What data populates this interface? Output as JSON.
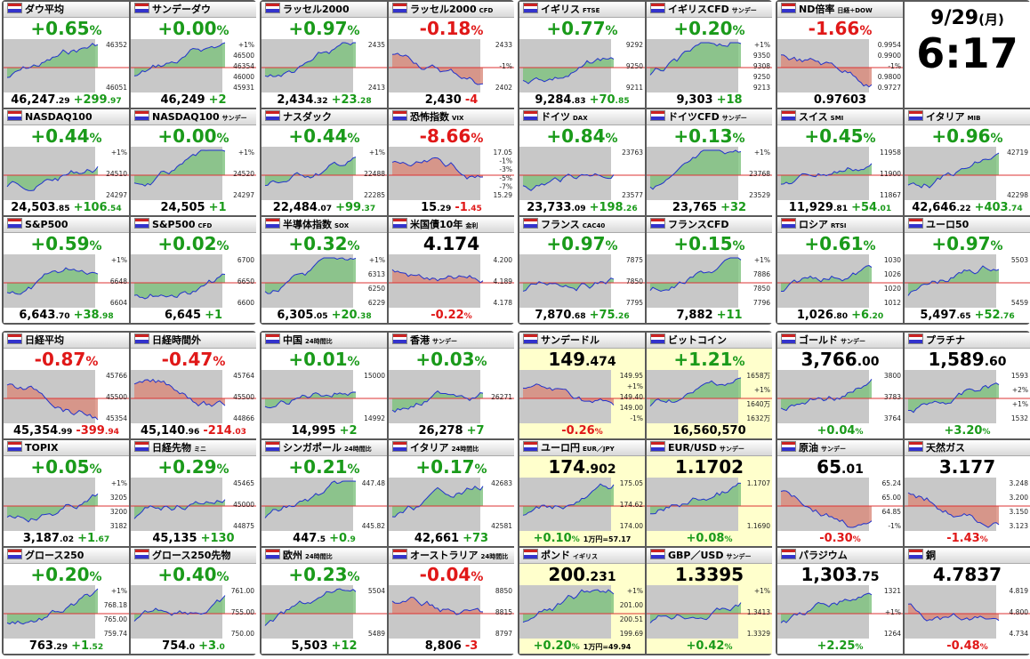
{
  "panels": [
    {
      "tiles": [
        {
          "name": "ダウ平均",
          "head": [
            "+0.65",
            "%"
          ],
          "foot": [
            [
              "46,247",
              ".29"
            ],
            [
              "+299",
              ".97"
            ]
          ],
          "labels": [
            "46352",
            "46051"
          ]
        },
        {
          "name": "サンデーダウ",
          "head": [
            "+0.00",
            "%"
          ],
          "foot": [
            [
              "46,249"
            ],
            [
              "+2"
            ]
          ],
          "labels": [
            "+1%",
            "46500",
            "46354",
            "46000",
            "45931"
          ]
        },
        {
          "name": "NASDAQ100",
          "head": [
            "+0.44",
            "%"
          ],
          "foot": [
            [
              "24,503",
              ".85"
            ],
            [
              "+106",
              ".54"
            ]
          ],
          "labels": [
            "+1%",
            "24510",
            "24297"
          ]
        },
        {
          "name": "NASDAQ100",
          "tag": "サンデー",
          "head": [
            "+0.00",
            "%"
          ],
          "foot": [
            [
              "24,505"
            ],
            [
              "+1"
            ]
          ],
          "labels": [
            "+1%",
            "24520",
            "24297"
          ]
        },
        {
          "name": "S&P500",
          "head": [
            "+0.59",
            "%"
          ],
          "foot": [
            [
              "6,643",
              ".70"
            ],
            [
              "+38",
              ".98"
            ]
          ],
          "labels": [
            "+1%",
            "6648",
            "6604"
          ]
        },
        {
          "name": "S&P500",
          "tag": "CFD",
          "head": [
            "+0.02",
            "%"
          ],
          "foot": [
            [
              "6,645"
            ],
            [
              "+1"
            ]
          ],
          "labels": [
            "6700",
            "6650",
            "6600"
          ]
        }
      ]
    },
    {
      "tiles": [
        {
          "name": "ラッセル2000",
          "head": [
            "+0.97",
            "%"
          ],
          "foot": [
            [
              "2,434",
              ".32"
            ],
            [
              "+23",
              ".28"
            ]
          ],
          "labels": [
            "2435",
            "2413"
          ]
        },
        {
          "name": "ラッセル2000",
          "tag": "CFD",
          "head": [
            "-0.18",
            "%"
          ],
          "foot": [
            [
              "2,430"
            ],
            [
              "-4"
            ]
          ],
          "labels": [
            "2433",
            "-1%",
            "2402"
          ]
        },
        {
          "name": "ナスダック",
          "head": [
            "+0.44",
            "%"
          ],
          "foot": [
            [
              "22,484",
              ".07"
            ],
            [
              "+99",
              ".37"
            ]
          ],
          "labels": [
            "+1%",
            "22488",
            "22285"
          ]
        },
        {
          "name": "恐怖指数",
          "tag": "VIX",
          "head": [
            "-8.66",
            "%"
          ],
          "foot": [
            [
              "15",
              ".29"
            ],
            [
              "-1",
              ".45"
            ]
          ],
          "labels": [
            "17.05",
            "-1%",
            "-3%",
            "-5%",
            "-7%",
            "15.29"
          ]
        },
        {
          "name": "半導体指数",
          "tag": "SOX",
          "head": [
            "+0.32",
            "%"
          ],
          "foot": [
            [
              "6,305",
              ".05"
            ],
            [
              "+20",
              ".38"
            ]
          ],
          "labels": [
            "+1%",
            "6313",
            "6250",
            "6229"
          ]
        },
        {
          "name": "米国債10年",
          "tag": "金利",
          "head": [
            "4.174"
          ],
          "foot": [
            [
              "-0.22",
              "%"
            ]
          ],
          "labels": [
            "4.200",
            "4.189",
            "4.178"
          ]
        }
      ]
    },
    {
      "tiles": [
        {
          "name": "イギリス",
          "tag": "FTSE",
          "head": [
            "+0.77",
            "%"
          ],
          "foot": [
            [
              "9,284",
              ".83"
            ],
            [
              "+70",
              ".85"
            ]
          ],
          "labels": [
            "9292",
            "9250",
            "9211"
          ]
        },
        {
          "name": "イギリスCFD",
          "tag": "サンデー",
          "head": [
            "+0.20",
            "%"
          ],
          "foot": [
            [
              "9,303"
            ],
            [
              "+18"
            ]
          ],
          "labels": [
            "+1%",
            "9350",
            "9308",
            "9250",
            "9213"
          ]
        },
        {
          "name": "ドイツ",
          "tag": "DAX",
          "head": [
            "+0.84",
            "%"
          ],
          "foot": [
            [
              "23,733",
              ".09"
            ],
            [
              "+198",
              ".26"
            ]
          ],
          "labels": [
            "23763",
            "23577"
          ]
        },
        {
          "name": "ドイツCFD",
          "tag": "サンデー",
          "head": [
            "+0.13",
            "%"
          ],
          "foot": [
            [
              "23,765"
            ],
            [
              "+32"
            ]
          ],
          "labels": [
            "+1%",
            "23768",
            "23529"
          ]
        },
        {
          "name": "フランス",
          "tag": "CAC40",
          "head": [
            "+0.97",
            "%"
          ],
          "foot": [
            [
              "7,870",
              ".68"
            ],
            [
              "+75",
              ".26"
            ]
          ],
          "labels": [
            "7875",
            "7850",
            "7795"
          ]
        },
        {
          "name": "フランスCFD",
          "head": [
            "+0.15",
            "%"
          ],
          "foot": [
            [
              "7,882"
            ],
            [
              "+11"
            ]
          ],
          "labels": [
            "+1%",
            "7886",
            "7850",
            "7796"
          ]
        }
      ]
    },
    {
      "clock": {
        "date": "9/29",
        "weekday": "(月)",
        "time": "6:17"
      },
      "tiles": [
        {
          "name": "ND倍率",
          "tag": "日経÷DOW",
          "head": [
            "-1.66",
            "%"
          ],
          "foot": [
            [
              "0.97603"
            ]
          ],
          "labels": [
            "0.9954",
            "0.9900",
            "-1%",
            "0.9800",
            "0.9727"
          ]
        },
        {
          "name": "スイス",
          "tag": "SMI",
          "head": [
            "+0.45",
            "%"
          ],
          "foot": [
            [
              "11,929",
              ".81"
            ],
            [
              "+54",
              ".01"
            ]
          ],
          "labels": [
            "11958",
            "11900",
            "11867"
          ]
        },
        {
          "name": "イタリア",
          "tag": "MIB",
          "head": [
            "+0.96",
            "%"
          ],
          "foot": [
            [
              "42,646",
              ".22"
            ],
            [
              "+403",
              ".74"
            ]
          ],
          "labels": [
            "42719",
            "42298"
          ]
        },
        {
          "name": "ロシア",
          "tag": "RTSI",
          "head": [
            "+0.61",
            "%"
          ],
          "foot": [
            [
              "1,026",
              ".80"
            ],
            [
              "+6",
              ".20"
            ]
          ],
          "labels": [
            "1030",
            "1026",
            "1020",
            "1012"
          ]
        },
        {
          "name": "ユーロ50",
          "head": [
            "+0.97",
            "%"
          ],
          "foot": [
            [
              "5,497",
              ".65"
            ],
            [
              "+52",
              ".76"
            ]
          ],
          "labels": [
            "5503",
            "5459"
          ]
        }
      ]
    },
    {
      "tiles": [
        {
          "name": "日経平均",
          "head": [
            "-0.87",
            "%"
          ],
          "foot": [
            [
              "45,354",
              ".99"
            ],
            [
              "-399",
              ".94"
            ]
          ],
          "labels": [
            "45766",
            "45500",
            "45354"
          ]
        },
        {
          "name": "日経時間外",
          "head": [
            "-0.47",
            "%"
          ],
          "foot": [
            [
              "45,140",
              ".96"
            ],
            [
              "-214",
              ".03"
            ]
          ],
          "labels": [
            "45764",
            "45500",
            "44866"
          ]
        },
        {
          "name": "TOPIX",
          "head": [
            "+0.05",
            "%"
          ],
          "foot": [
            [
              "3,187",
              ".02"
            ],
            [
              "+1",
              ".67"
            ]
          ],
          "labels": [
            "+1%",
            "3205",
            "3200",
            "3182"
          ]
        },
        {
          "name": "日経先物",
          "tag": "ミニ",
          "head": [
            "+0.29",
            "%"
          ],
          "foot": [
            [
              "45,135"
            ],
            [
              "+130"
            ]
          ],
          "labels": [
            "45465",
            "45000",
            "44875"
          ]
        },
        {
          "name": "グロース250",
          "head": [
            "+0.20",
            "%"
          ],
          "foot": [
            [
              "763",
              ".29"
            ],
            [
              "+1",
              ".52"
            ]
          ],
          "labels": [
            "+1%",
            "768.18",
            "765.00",
            "759.74"
          ]
        },
        {
          "name": "グロース250先物",
          "head": [
            "+0.40",
            "%"
          ],
          "foot": [
            [
              "754",
              ".0"
            ],
            [
              "+3",
              ".0"
            ]
          ],
          "labels": [
            "761.00",
            "755.00",
            "750.00"
          ]
        }
      ]
    },
    {
      "tiles": [
        {
          "name": "中国",
          "tag": "24時間比",
          "head": [
            "+0.01",
            "%"
          ],
          "foot": [
            [
              "14,995"
            ],
            [
              "+2"
            ]
          ],
          "labels": [
            "15000",
            "14992"
          ]
        },
        {
          "name": "香港",
          "tag": "サンデー",
          "head": [
            "+0.03",
            "%"
          ],
          "foot": [
            [
              "26,278"
            ],
            [
              "+7"
            ]
          ],
          "labels": [
            "26271"
          ]
        },
        {
          "name": "シンガポール",
          "tag": "24時間比",
          "head": [
            "+0.21",
            "%"
          ],
          "foot": [
            [
              "447",
              ".5"
            ],
            [
              "+0",
              ".9"
            ]
          ],
          "labels": [
            "447.48",
            "445.82"
          ]
        },
        {
          "name": "イタリア",
          "tag": "24時間比",
          "head": [
            "+0.17",
            "%"
          ],
          "foot": [
            [
              "42,661"
            ],
            [
              "+73"
            ]
          ],
          "labels": [
            "42683",
            "42581"
          ]
        },
        {
          "name": "欧州",
          "tag": "24時間比",
          "head": [
            "+0.23",
            "%"
          ],
          "foot": [
            [
              "5,503"
            ],
            [
              "+12"
            ]
          ],
          "labels": [
            "5504",
            "5489"
          ]
        },
        {
          "name": "オーストラリア",
          "tag": "24時間比",
          "head": [
            "-0.04",
            "%"
          ],
          "foot": [
            [
              "8,806"
            ],
            [
              "-3"
            ]
          ],
          "labels": [
            "8850",
            "8815",
            "8797"
          ]
        }
      ]
    },
    {
      "tile_bg": "#ffffcc",
      "tiles": [
        {
          "name": "サンデードル",
          "head": [
            "149",
            ".474"
          ],
          "foot": [
            [
              "-0.26",
              "%"
            ]
          ],
          "labels": [
            "149.95",
            "+1%",
            "149.40",
            "149.00",
            "-1%"
          ]
        },
        {
          "name": "ビットコイン",
          "head": [
            "+1.21",
            "%"
          ],
          "foot": [
            [
              "16,560,570"
            ]
          ],
          "labels": [
            "1658万",
            "+1%",
            "1640万",
            "1632万"
          ]
        },
        {
          "name": "ユーロ円",
          "tag": "EUR／JPY",
          "head": [
            "174",
            ".902"
          ],
          "foot": [
            [
              "+0.10",
              "%"
            ],
            [
              "1万円=57.17"
            ]
          ],
          "labels": [
            "175.05",
            "174.62",
            "174.00"
          ]
        },
        {
          "name": "EUR/USD",
          "tag": "サンデー",
          "head": [
            "1.1702"
          ],
          "foot": [
            [
              "+0.08",
              "%"
            ]
          ],
          "labels": [
            "1.1707",
            "1.1690"
          ]
        },
        {
          "name": "ポンド",
          "tag": "イギリス",
          "head": [
            "200",
            ".231"
          ],
          "foot": [
            [
              "+0.20",
              "%"
            ],
            [
              "1万円=49.94"
            ]
          ],
          "labels": [
            "+1%",
            "201.00",
            "200.51",
            "199.69"
          ]
        },
        {
          "name": "GBP／USD",
          "tag": "サンデー",
          "head": [
            "1.3395"
          ],
          "foot": [
            [
              "+0.42",
              "%"
            ]
          ],
          "labels": [
            "+1%",
            "1.3413",
            "1.3329"
          ]
        }
      ]
    },
    {
      "tiles": [
        {
          "name": "ゴールド",
          "tag": "サンデー",
          "head": [
            "3,766",
            ".00"
          ],
          "foot": [
            [
              "+0.04",
              "%"
            ]
          ],
          "labels": [
            "3800",
            "3783",
            "3764"
          ]
        },
        {
          "name": "プラチナ",
          "head": [
            "1,589",
            ".60"
          ],
          "foot": [
            [
              "+3.20",
              "%"
            ]
          ],
          "labels": [
            "1593",
            "+2%",
            "+1%",
            "1532"
          ]
        },
        {
          "name": "原油",
          "tag": "サンデー",
          "head": [
            "65",
            ".01"
          ],
          "foot": [
            [
              "-0.30",
              "%"
            ]
          ],
          "labels": [
            "65.24",
            "65.00",
            "64.85",
            "-1%"
          ]
        },
        {
          "name": "天然ガス",
          "head": [
            "3.177"
          ],
          "foot": [
            [
              "-1.43",
              "%"
            ]
          ],
          "labels": [
            "3.248",
            "3.200",
            "3.150",
            "3.123"
          ]
        },
        {
          "name": "パラジウム",
          "head": [
            "1,303",
            ".75"
          ],
          "foot": [
            [
              "+2.25",
              "%"
            ]
          ],
          "labels": [
            "1321",
            "+1%",
            "1264"
          ]
        },
        {
          "name": "銅",
          "head": [
            "4.7837"
          ],
          "foot": [
            [
              "-0.48",
              "%"
            ]
          ],
          "labels": [
            "4.819",
            "4.800",
            "4.734"
          ]
        }
      ]
    }
  ]
}
